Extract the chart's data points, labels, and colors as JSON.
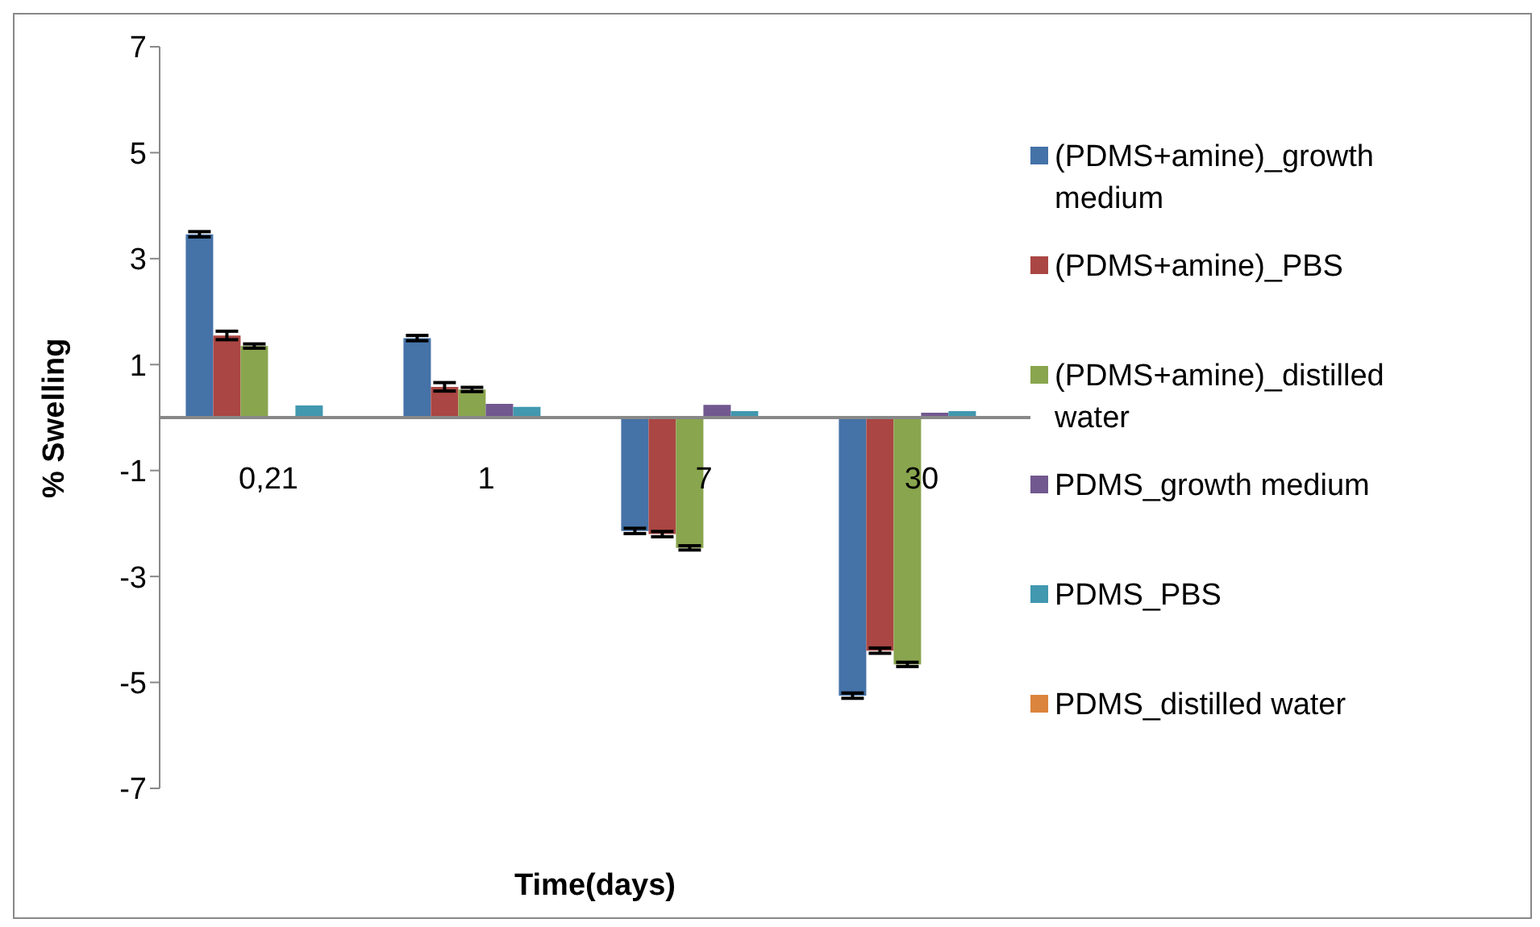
{
  "chart_data": {
    "type": "bar",
    "xlabel": "Time(days)",
    "ylabel": "% Swelling",
    "categories": [
      "0,21",
      "1",
      "7",
      "30"
    ],
    "series": [
      {
        "name": "(PDMS+amine)_growth medium",
        "color": "#4572a7",
        "values": [
          3.46,
          1.5,
          -2.14,
          -5.25
        ],
        "errors": [
          0.05,
          0.05,
          0.05,
          0.05
        ]
      },
      {
        "name": "(PDMS+amine)_PBS",
        "color": "#aa4643",
        "values": [
          1.55,
          0.58,
          -2.2,
          -4.4
        ],
        "errors": [
          0.08,
          0.08,
          0.05,
          0.05
        ]
      },
      {
        "name": "(PDMS+amine)_distilled water",
        "color": "#89a54e",
        "values": [
          1.35,
          0.53,
          -2.46,
          -4.66
        ],
        "errors": [
          0.04,
          0.04,
          0.04,
          0.04
        ]
      },
      {
        "name": "PDMS_growth medium",
        "color": "#71588f",
        "values": [
          -0.03,
          0.26,
          0.24,
          0.09
        ]
      },
      {
        "name": "PDMS_PBS",
        "color": "#4198af",
        "values": [
          0.23,
          0.2,
          0.12,
          0.12
        ]
      },
      {
        "name": "PDMS_distilled water",
        "color": "#db843d",
        "values": [
          0.03,
          0.01,
          0,
          0.01
        ]
      }
    ],
    "ylim": [
      -7,
      7
    ],
    "yticks": [
      -7,
      -5,
      -3,
      -1,
      1,
      3,
      5,
      7
    ],
    "legend": "right"
  }
}
